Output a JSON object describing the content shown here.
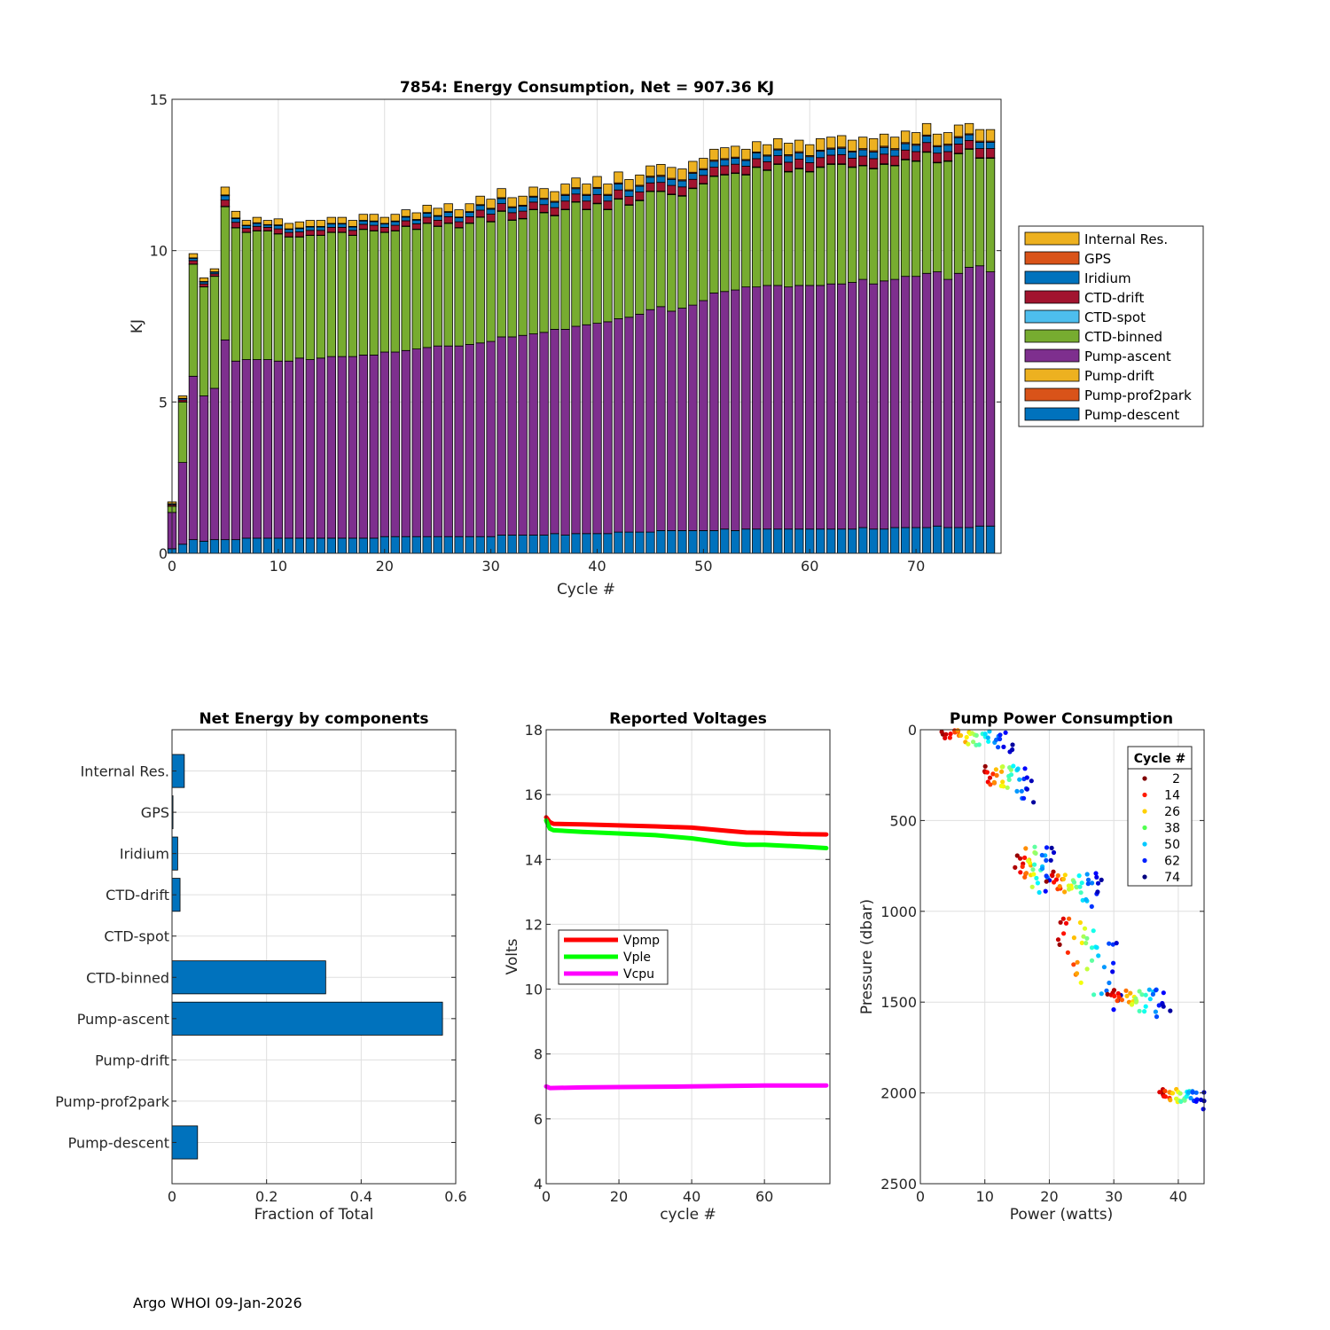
{
  "figure": {
    "footer": "Argo WHOI 09-Jan-2026"
  },
  "chart_data": [
    {
      "id": "energy",
      "type": "bar",
      "stacked": true,
      "title": "7854: Energy Consumption,  Net = 907.36 KJ",
      "xlabel": "Cycle #",
      "ylabel": "KJ",
      "xlim": [
        0,
        78
      ],
      "ylim": [
        0,
        15
      ],
      "xticks": [
        0,
        10,
        20,
        30,
        40,
        50,
        60,
        70
      ],
      "yticks": [
        0,
        5,
        10,
        15
      ],
      "grid": true,
      "legend_position": "right",
      "legend": [
        "Internal Res.",
        "GPS",
        "Iridium",
        "CTD-drift",
        "CTD-spot",
        "CTD-binned",
        "Pump-ascent",
        "Pump-drift",
        "Pump-prof2park",
        "Pump-descent"
      ],
      "colors": {
        "Internal Res.": "#EDB120",
        "GPS": "#D95319",
        "Iridium": "#0072BD",
        "CTD-drift": "#A2142F",
        "CTD-spot": "#4DBEEE",
        "CTD-binned": "#77AC30",
        "Pump-ascent": "#7E2F8E",
        "Pump-drift": "#EDB120",
        "Pump-prof2park": "#D95319",
        "Pump-descent": "#0072BD"
      },
      "cycles": [
        0,
        1,
        2,
        3,
        4,
        5,
        6,
        7,
        8,
        9,
        10,
        11,
        12,
        13,
        14,
        15,
        16,
        17,
        18,
        19,
        20,
        21,
        22,
        23,
        24,
        25,
        26,
        27,
        28,
        29,
        30,
        31,
        32,
        33,
        34,
        35,
        36,
        37,
        38,
        39,
        40,
        41,
        42,
        43,
        44,
        45,
        46,
        47,
        48,
        49,
        50,
        51,
        52,
        53,
        54,
        55,
        56,
        57,
        58,
        59,
        60,
        61,
        62,
        63,
        64,
        65,
        66,
        67,
        68,
        69,
        70,
        71,
        72,
        73,
        74,
        75,
        76,
        77
      ],
      "totals": [
        1.7,
        5.2,
        9.9,
        9.1,
        9.4,
        12.1,
        11.3,
        11.0,
        11.1,
        11.0,
        11.05,
        10.9,
        10.95,
        11.0,
        11.0,
        11.1,
        11.1,
        11.0,
        11.2,
        11.2,
        11.1,
        11.2,
        11.35,
        11.25,
        11.5,
        11.4,
        11.55,
        11.35,
        11.55,
        11.8,
        11.7,
        12.05,
        11.75,
        11.8,
        12.1,
        12.05,
        11.95,
        12.2,
        12.4,
        12.2,
        12.45,
        12.2,
        12.6,
        12.35,
        12.5,
        12.8,
        12.85,
        12.75,
        12.7,
        12.95,
        13.05,
        13.35,
        13.4,
        13.45,
        13.35,
        13.6,
        13.5,
        13.7,
        13.55,
        13.65,
        13.5,
        13.7,
        13.75,
        13.8,
        13.65,
        13.75,
        13.7,
        13.85,
        13.75,
        13.95,
        13.9,
        14.2,
        13.85,
        13.9,
        14.15,
        14.2,
        14.0,
        14.0
      ],
      "pump_descent": [
        0.15,
        0.3,
        0.45,
        0.4,
        0.45,
        0.45,
        0.45,
        0.5,
        0.5,
        0.5,
        0.5,
        0.5,
        0.5,
        0.5,
        0.5,
        0.5,
        0.5,
        0.5,
        0.5,
        0.5,
        0.55,
        0.55,
        0.55,
        0.55,
        0.55,
        0.55,
        0.55,
        0.55,
        0.55,
        0.55,
        0.55,
        0.6,
        0.6,
        0.6,
        0.6,
        0.6,
        0.65,
        0.6,
        0.65,
        0.65,
        0.65,
        0.65,
        0.7,
        0.7,
        0.7,
        0.7,
        0.75,
        0.75,
        0.75,
        0.75,
        0.75,
        0.75,
        0.8,
        0.75,
        0.8,
        0.8,
        0.8,
        0.8,
        0.8,
        0.8,
        0.8,
        0.8,
        0.8,
        0.8,
        0.8,
        0.85,
        0.8,
        0.8,
        0.85,
        0.85,
        0.85,
        0.85,
        0.9,
        0.85,
        0.85,
        0.85,
        0.9,
        0.9
      ],
      "pump_ascent": [
        1.2,
        2.7,
        5.4,
        4.8,
        5.0,
        6.6,
        5.9,
        5.9,
        5.9,
        5.9,
        5.85,
        5.85,
        5.95,
        5.9,
        5.95,
        6.0,
        6.0,
        6.0,
        6.05,
        6.05,
        6.1,
        6.1,
        6.15,
        6.2,
        6.25,
        6.3,
        6.3,
        6.3,
        6.35,
        6.4,
        6.45,
        6.55,
        6.55,
        6.6,
        6.65,
        6.7,
        6.75,
        6.8,
        6.85,
        6.9,
        6.95,
        7.0,
        7.05,
        7.1,
        7.2,
        7.35,
        7.4,
        7.25,
        7.35,
        7.45,
        7.6,
        7.85,
        7.85,
        7.95,
        8.0,
        8.0,
        8.05,
        8.05,
        8.0,
        8.05,
        8.05,
        8.05,
        8.1,
        8.1,
        8.15,
        8.2,
        8.1,
        8.2,
        8.2,
        8.3,
        8.3,
        8.4,
        8.4,
        8.2,
        8.4,
        8.6,
        8.6,
        8.4
      ],
      "ctd_binned": [
        0.2,
        2.0,
        3.7,
        3.6,
        3.7,
        4.4,
        4.4,
        4.2,
        4.25,
        4.25,
        4.2,
        4.1,
        4.0,
        4.1,
        4.05,
        4.1,
        4.1,
        4.0,
        4.15,
        4.1,
        3.95,
        4.0,
        4.1,
        3.95,
        4.1,
        3.95,
        4.05,
        3.9,
        4.0,
        4.15,
        3.95,
        4.15,
        3.85,
        3.85,
        4.1,
        3.95,
        3.75,
        3.95,
        4.1,
        3.8,
        3.95,
        3.7,
        3.95,
        3.7,
        3.75,
        3.9,
        3.8,
        3.85,
        3.7,
        3.85,
        3.85,
        3.85,
        3.85,
        3.85,
        3.7,
        3.95,
        3.8,
        4.0,
        3.8,
        3.85,
        3.75,
        3.9,
        3.95,
        3.95,
        3.8,
        3.75,
        3.8,
        3.85,
        3.75,
        3.85,
        3.8,
        4.0,
        3.6,
        3.9,
        3.95,
        3.9,
        3.55,
        3.75
      ],
      "voltages": {
        "title": "Reported Voltages",
        "xlabel": "cycle #",
        "ylabel": "Volts",
        "xlim": [
          0,
          78
        ],
        "ylim": [
          4,
          18
        ],
        "xticks": [
          0,
          20,
          40,
          60
        ],
        "yticks": [
          4,
          6,
          8,
          10,
          12,
          14,
          16,
          18
        ]
      }
    },
    {
      "id": "components",
      "type": "bar",
      "orientation": "horizontal",
      "title": "Net Energy by components",
      "xlabel": "Fraction of Total",
      "xlim": [
        0,
        0.6
      ],
      "xticks": [
        0,
        0.2,
        0.4,
        0.6
      ],
      "grid": true,
      "bar_color": "#0072BD",
      "categories": [
        "Internal Res.",
        "GPS",
        "Iridium",
        "CTD-drift",
        "CTD-spot",
        "CTD-binned",
        "Pump-ascent",
        "Pump-drift",
        "Pump-prof2park",
        "Pump-descent"
      ],
      "values": [
        0.026,
        0.002,
        0.012,
        0.017,
        0.0,
        0.325,
        0.572,
        0.0,
        0.0,
        0.054
      ]
    },
    {
      "id": "voltages",
      "type": "line",
      "title": "Reported Voltages",
      "xlabel": "cycle #",
      "ylabel": "Volts",
      "xlim": [
        0,
        78
      ],
      "ylim": [
        4,
        18
      ],
      "xticks": [
        0,
        20,
        40,
        60
      ],
      "yticks": [
        4,
        6,
        8,
        10,
        12,
        14,
        16,
        18
      ],
      "grid": true,
      "legend_position": "middle-left",
      "series": [
        {
          "name": "Vpmp",
          "color": "#FF0000",
          "x": [
            0,
            1,
            2,
            10,
            20,
            30,
            40,
            50,
            55,
            60,
            70,
            77
          ],
          "values": [
            15.3,
            15.15,
            15.1,
            15.08,
            15.05,
            15.02,
            14.98,
            14.88,
            14.83,
            14.82,
            14.78,
            14.77
          ]
        },
        {
          "name": "Vple",
          "color": "#00FF00",
          "x": [
            0,
            1,
            2,
            10,
            20,
            30,
            40,
            50,
            55,
            60,
            70,
            77
          ],
          "values": [
            15.2,
            14.95,
            14.9,
            14.85,
            14.8,
            14.75,
            14.65,
            14.5,
            14.45,
            14.45,
            14.4,
            14.35
          ]
        },
        {
          "name": "Vcpu",
          "color": "#FF00FF",
          "x": [
            0,
            1,
            10,
            20,
            40,
            60,
            77
          ],
          "values": [
            7.0,
            6.95,
            6.97,
            6.98,
            7.0,
            7.03,
            7.03
          ]
        }
      ]
    },
    {
      "id": "pump_power",
      "type": "scatter",
      "title": "Pump Power Consumption",
      "xlabel": "Power (watts)",
      "ylabel": "Pressure (dbar)",
      "xlim": [
        0,
        44
      ],
      "ylim": [
        0,
        2500
      ],
      "y_reversed": true,
      "xticks": [
        0,
        10,
        20,
        30,
        40
      ],
      "yticks": [
        0,
        500,
        1000,
        1500,
        2000,
        2500
      ],
      "grid": true,
      "legend_title": "Cycle #",
      "legend_position": "top-right",
      "legend": [
        {
          "label": "2",
          "color": "#800000"
        },
        {
          "label": "14",
          "color": "#FF1A00"
        },
        {
          "label": "26",
          "color": "#FFD000"
        },
        {
          "label": "38",
          "color": "#50FF50"
        },
        {
          "label": "50",
          "color": "#00C8FF"
        },
        {
          "label": "62",
          "color": "#0020FF"
        },
        {
          "label": "74",
          "color": "#000080"
        }
      ],
      "clusters": [
        {
          "x": [
            3.5,
            14.0
          ],
          "y": [
            0,
            130
          ]
        },
        {
          "x": [
            10.0,
            17.5
          ],
          "y": [
            200,
            420
          ]
        },
        {
          "x": [
            15.0,
            20.5
          ],
          "y": [
            640,
            1000
          ]
        },
        {
          "x": [
            20.0,
            28.0
          ],
          "y": [
            780,
            1000
          ]
        },
        {
          "x": [
            21.5,
            31.0
          ],
          "y": [
            1040,
            1660
          ]
        },
        {
          "x": [
            29.5,
            38.5
          ],
          "y": [
            1430,
            1600
          ]
        },
        {
          "x": [
            37.0,
            44.0
          ],
          "y": [
            1980,
            2100
          ]
        }
      ]
    }
  ]
}
